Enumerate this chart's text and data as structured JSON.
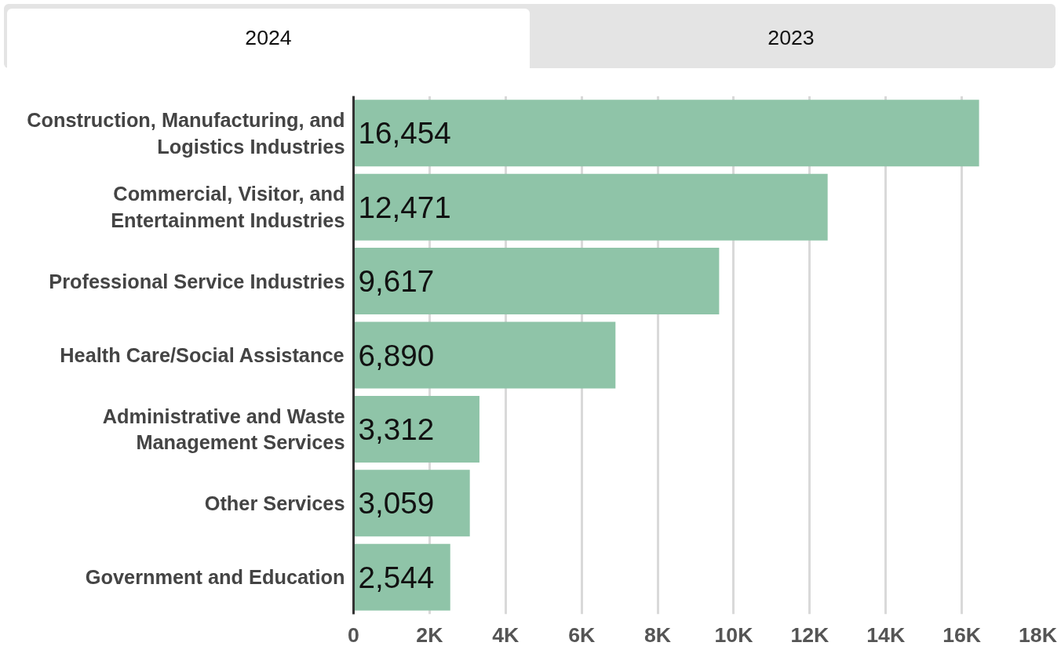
{
  "chart_data": {
    "type": "bar",
    "orientation": "horizontal",
    "annotations": [
      "2024",
      "2023"
    ],
    "categories": [
      "Construction, Manufacturing, and Logistics Industries",
      "Commercial, Visitor, and Entertainment Industries",
      "Professional Service Industries",
      "Health Care/Social Assistance",
      "Administrative and Waste Management Services",
      "Other Services",
      "Government and Education"
    ],
    "values": [
      16454,
      12471,
      9617,
      6890,
      3312,
      3059,
      2544
    ],
    "color": "#8fc4a8",
    "value_labels": [
      "16,454",
      "12,471",
      "9,617",
      "6,890",
      "3,312",
      "3,059",
      "2,544"
    ],
    "xlim": [
      0,
      18000
    ],
    "xticks": [
      0,
      {
        "value": 2000,
        "label": "2K"
      },
      {
        "value": 4000,
        "label": "4K"
      },
      {
        "value": 6000,
        "label": "6K"
      },
      {
        "value": 8000,
        "label": "8K"
      },
      {
        "value": 10000,
        "label": "10K"
      },
      {
        "value": 12000,
        "label": "12K"
      },
      {
        "value": 14000,
        "label": "14K"
      },
      {
        "value": 16000,
        "label": "16K"
      },
      {
        "value": 18000,
        "label": "18K"
      }
    ],
    "grid": "x"
  }
}
